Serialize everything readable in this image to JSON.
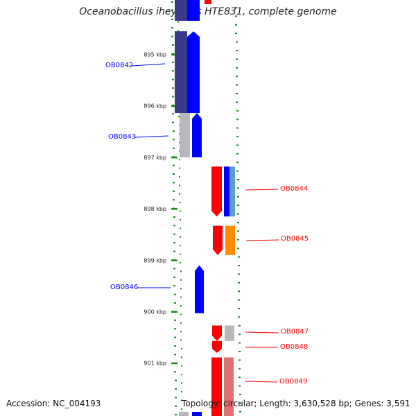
{
  "title": "Oceanobacillus iheyensis HTE831, complete genome",
  "footer": {
    "accession": "Accession: NC_004193",
    "topology": "Topology: circular; Length: 3,630,528 bp; Genes: 3,591"
  },
  "colors": {
    "forward": "#ff0000",
    "reverse": "#0000ff",
    "dark_reverse": "#3a3a8c",
    "grey": "#b8b8bc",
    "orange": "#ff8c00",
    "pink": "#e07070",
    "light_blue": "#5aa0c8",
    "tick_green": "#1a8c1a",
    "backbone": "#8a8a8a"
  },
  "axis": {
    "ticks": [
      {
        "label": "895 kbp",
        "kbp": 895
      },
      {
        "label": "896 kbp",
        "kbp": 896
      },
      {
        "label": "897 kbp",
        "kbp": 897
      },
      {
        "label": "898 kbp",
        "kbp": 898
      },
      {
        "label": "899 kbp",
        "kbp": 899
      },
      {
        "label": "900 kbp",
        "kbp": 900
      },
      {
        "label": "901 kbp",
        "kbp": 901
      }
    ]
  },
  "genes": [
    {
      "name": "OB0842",
      "strand": "reverse",
      "start_kbp": 894.55,
      "end_kbp": 896.14
    },
    {
      "name": "OB0843",
      "strand": "reverse",
      "start_kbp": 896.14,
      "end_kbp": 897.0
    },
    {
      "name": "OB0844",
      "strand": "forward",
      "start_kbp": 897.18,
      "end_kbp": 898.15
    },
    {
      "name": "OB0845",
      "strand": "forward",
      "start_kbp": 898.33,
      "end_kbp": 898.9
    },
    {
      "name": "OB0846",
      "strand": "reverse",
      "start_kbp": 899.1,
      "end_kbp": 900.03
    },
    {
      "name": "OB0847",
      "strand": "forward",
      "start_kbp": 900.27,
      "end_kbp": 900.57
    },
    {
      "name": "OB0848",
      "strand": "forward",
      "start_kbp": 900.57,
      "end_kbp": 900.8
    },
    {
      "name": "OB0849",
      "strand": "forward",
      "start_kbp": 900.89,
      "end_kbp": 901.6
    }
  ]
}
